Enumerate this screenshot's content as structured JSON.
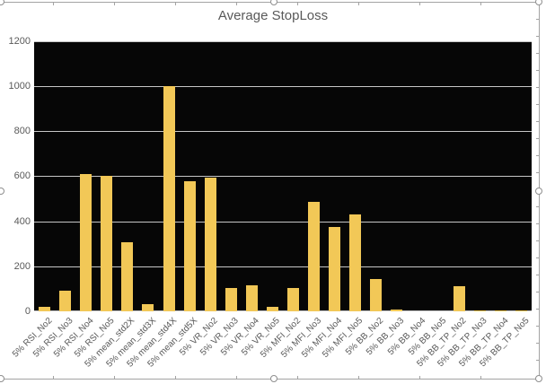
{
  "chart_data": {
    "type": "bar",
    "title": "Average StopLoss",
    "xlabel": "",
    "ylabel": "",
    "categories": [
      "5% RSI_No2",
      "5% RSI_No3",
      "5% RSI_No4",
      "5% RSI_No5",
      "5% mean_std2X",
      "5% mean_std3X",
      "5% mean_std4X",
      "5% mean_std5X",
      "5% VR_No2",
      "5% VR_No3",
      "5% VR_No4",
      "5% VR_No5",
      "5% MFI_No2",
      "5% MFI_No3",
      "5% MFI_No4",
      "5% MFI_No5",
      "5% BB_No2",
      "5% BB_No3",
      "5% BB_No4",
      "5% BB_No5",
      "5% BB_TP_No2",
      "5% BB_TP_No3",
      "5% BB_TP_No4",
      "5% BB_TP_No5"
    ],
    "values": [
      20,
      90,
      610,
      600,
      305,
      30,
      1000,
      580,
      595,
      105,
      115,
      20,
      105,
      485,
      375,
      430,
      145,
      8,
      0,
      0,
      110,
      5,
      5,
      5
    ],
    "ylim": [
      0,
      1200
    ],
    "yticks": [
      0,
      200,
      400,
      600,
      800,
      1000,
      1200
    ],
    "grid": "on",
    "legend": "none",
    "bar_color": "#F2C857",
    "plot_background": "#060606",
    "gridline_color": "#C6C6C6",
    "text_color": "#595959"
  },
  "worksheet": {
    "selection_handles": [
      "top-left",
      "top-center",
      "top-right",
      "mid-left",
      "mid-right",
      "bottom-left",
      "bottom-center",
      "bottom-right"
    ]
  }
}
